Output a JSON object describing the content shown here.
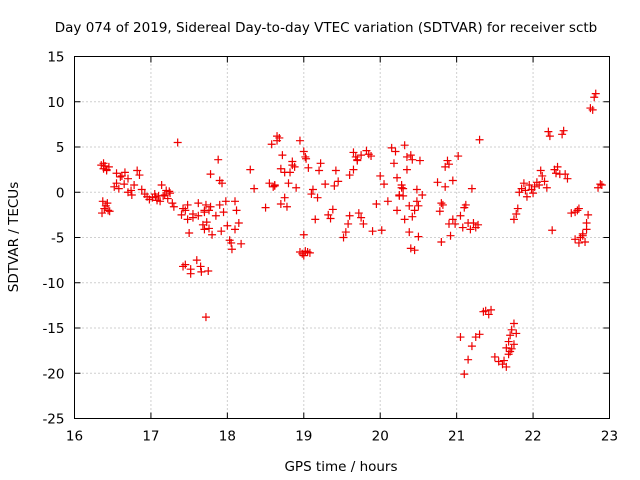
{
  "chart_data": {
    "type": "scatter",
    "title": "Day 074 of 2019, Sidereal Day-to-day VTEC variation (SDTVAR) for receiver sctb",
    "xlabel": "GPS time / hours",
    "ylabel": "SDTVAR / TECUs",
    "xlim": [
      16,
      23
    ],
    "ylim": [
      -25,
      15
    ],
    "xticks": [
      16,
      17,
      18,
      19,
      20,
      21,
      22,
      23
    ],
    "yticks": [
      -25,
      -20,
      -15,
      -10,
      -5,
      0,
      5,
      10,
      15
    ],
    "xtick_labels": [
      "16",
      "17",
      "18",
      "19",
      "20",
      "21",
      "22",
      "23"
    ],
    "ytick_labels": [
      "-25",
      "-20",
      "-15",
      "-10",
      "-5",
      "0",
      "5",
      "10",
      "15"
    ],
    "grid": true,
    "marker": "+",
    "color": "#ee0000",
    "series": [
      {
        "name": "SDTVAR",
        "x": [
          16.35,
          16.38,
          16.4,
          16.42,
          16.45,
          16.37,
          16.41,
          16.44,
          16.36,
          16.39,
          16.43,
          16.46,
          16.38,
          16.42,
          16.52,
          16.55,
          16.58,
          16.62,
          16.66,
          16.7,
          16.74,
          16.78,
          16.82,
          16.85,
          16.88,
          16.92,
          16.95,
          16.98,
          16.55,
          16.6,
          16.65,
          16.7,
          16.75,
          17.02,
          17.05,
          17.08,
          17.1,
          17.14,
          17.18,
          17.2,
          17.22,
          17.25,
          17.28,
          17.06,
          17.12,
          17.16,
          17.24,
          17.3,
          17.35,
          17.4,
          17.42,
          17.45,
          17.48,
          17.5,
          17.52,
          17.55,
          17.42,
          17.45,
          17.48,
          17.52,
          17.55,
          17.6,
          17.62,
          17.65,
          17.68,
          17.7,
          17.72,
          17.75,
          17.62,
          17.66,
          17.7,
          17.72,
          17.76,
          17.78,
          17.7,
          17.73,
          17.76,
          17.8,
          17.78,
          17.85,
          17.88,
          17.9,
          17.92,
          17.95,
          17.98,
          17.9,
          17.93,
          18.0,
          18.03,
          18.06,
          18.1,
          18.12,
          18.15,
          18.18,
          18.05,
          18.1,
          18.3,
          18.35,
          18.5,
          18.55,
          18.6,
          18.62,
          18.65,
          18.68,
          18.58,
          18.62,
          18.65,
          18.7,
          18.72,
          18.75,
          18.78,
          18.82,
          18.85,
          18.88,
          18.7,
          18.75,
          18.8,
          18.85,
          18.9,
          18.95,
          18.98,
          19.0,
          19.02,
          19.05,
          19.08,
          19.0,
          19.03,
          19.06,
          18.95,
          19.0,
          19.02,
          19.1,
          19.12,
          19.15,
          19.18,
          19.2,
          19.22,
          19.28,
          19.32,
          19.35,
          19.38,
          19.4,
          19.42,
          19.45,
          19.52,
          19.55,
          19.58,
          19.6,
          19.65,
          19.68,
          19.7,
          19.72,
          19.75,
          19.78,
          19.6,
          19.65,
          19.7,
          19.75,
          19.82,
          19.85,
          19.88,
          19.9,
          19.95,
          20.0,
          20.02,
          20.05,
          20.1,
          20.15,
          20.18,
          20.2,
          20.22,
          20.25,
          20.28,
          20.3,
          20.32,
          20.35,
          20.38,
          20.4,
          20.42,
          20.45,
          20.48,
          20.5,
          20.22,
          20.25,
          20.28,
          20.3,
          20.32,
          20.35,
          20.38,
          20.4,
          20.42,
          20.45,
          20.48,
          20.5,
          20.52,
          20.55,
          20.75,
          20.78,
          20.8,
          20.82,
          20.85,
          20.88,
          20.9,
          20.92,
          20.95,
          20.98,
          20.8,
          20.85,
          20.9,
          20.95,
          21.02,
          21.05,
          21.08,
          21.1,
          21.12,
          21.15,
          21.18,
          21.2,
          21.22,
          21.25,
          21.28,
          21.3,
          21.05,
          21.1,
          21.15,
          21.2,
          21.25,
          21.3,
          21.35,
          21.38,
          21.42,
          21.45,
          21.5,
          21.55,
          21.6,
          21.62,
          21.65,
          21.68,
          21.7,
          21.72,
          21.75,
          21.78,
          21.65,
          21.68,
          21.7,
          21.72,
          21.75,
          21.75,
          21.78,
          21.8,
          21.82,
          21.85,
          21.88,
          21.9,
          21.92,
          21.95,
          21.98,
          22.0,
          22.02,
          22.05,
          22.08,
          22.1,
          22.12,
          22.15,
          22.18,
          22.2,
          22.22,
          22.25,
          22.28,
          22.3,
          22.32,
          22.35,
          22.38,
          22.4,
          22.42,
          22.45,
          22.5,
          22.55,
          22.58,
          22.6,
          22.62,
          22.65,
          22.68,
          22.7,
          22.72,
          22.75,
          22.78,
          22.8,
          22.82,
          22.85,
          22.88,
          22.9,
          22.55,
          22.6,
          22.65,
          22.7
        ],
        "y": [
          3.0,
          2.6,
          2.9,
          2.5,
          2.8,
          -1.0,
          -1.5,
          -2.0,
          -2.3,
          -1.8,
          -1.2,
          -2.1,
          3.2,
          2.4,
          0.6,
          1.0,
          0.4,
          1.8,
          2.2,
          1.5,
          0.2,
          0.8,
          2.4,
          1.9,
          0.3,
          -0.2,
          -0.5,
          -0.8,
          2.1,
          1.7,
          0.9,
          0.0,
          -0.3,
          -0.6,
          -0.2,
          -0.9,
          -0.4,
          0.8,
          -0.3,
          0.2,
          -0.7,
          -0.1,
          -1.2,
          -0.5,
          -1.0,
          -0.4,
          0.1,
          -1.6,
          5.5,
          -2.5,
          -8.2,
          -2.0,
          -3.0,
          -4.5,
          -8.5,
          -2.8,
          -1.8,
          -8.0,
          -1.4,
          -9.0,
          -2.4,
          -7.5,
          -2.6,
          -8.2,
          -3.6,
          -2.0,
          -1.4,
          -8.7,
          -1.2,
          -8.8,
          -2.2,
          -13.8,
          -2.0,
          -1.6,
          -4.1,
          -3.3,
          -4.0,
          -4.7,
          2.0,
          -2.6,
          3.6,
          -1.4,
          -4.3,
          -2.2,
          -1.0,
          1.3,
          1.0,
          -3.7,
          -5.3,
          -6.3,
          -4.1,
          -2.0,
          -3.4,
          -5.7,
          -5.6,
          -1.0,
          2.5,
          0.4,
          -1.7,
          1.0,
          0.6,
          0.8,
          5.7,
          6.0,
          5.3,
          0.7,
          6.2,
          2.6,
          4.1,
          2.2,
          -1.6,
          2.2,
          3.0,
          2.8,
          -1.3,
          -0.6,
          1.0,
          3.4,
          0.5,
          -6.6,
          -6.8,
          -7.0,
          -6.5,
          -6.6,
          -6.7,
          4.5,
          3.7,
          2.7,
          5.7,
          -4.7,
          3.9,
          -0.2,
          0.3,
          -3.0,
          -0.6,
          2.4,
          3.2,
          0.9,
          -2.5,
          -2.9,
          -1.9,
          0.7,
          2.4,
          1.2,
          -5.0,
          -4.4,
          -3.5,
          -2.6,
          4.4,
          3.9,
          3.5,
          -2.3,
          -2.8,
          -3.5,
          1.9,
          2.5,
          3.6,
          4.1,
          4.6,
          4.2,
          4.0,
          -4.3,
          -1.3,
          1.8,
          -4.2,
          0.9,
          -1.0,
          4.9,
          3.2,
          4.5,
          1.6,
          -0.4,
          0.8,
          -0.4,
          5.2,
          3.9,
          -1.5,
          4.1,
          3.6,
          -2.0,
          0.3,
          -1.5,
          -2.0,
          -0.3,
          0.5,
          0.4,
          -3.0,
          2.5,
          -4.4,
          -6.2,
          -2.7,
          -6.4,
          -1.0,
          -4.9,
          3.5,
          -0.3,
          1.1,
          -2.1,
          -5.5,
          -1.4,
          0.6,
          3.5,
          -3.5,
          -4.8,
          -3.0,
          -3.5,
          -1.2,
          2.8,
          3.1,
          1.3,
          4.0,
          -2.6,
          -3.9,
          -1.7,
          -1.4,
          -3.4,
          -4.1,
          0.4,
          -3.4,
          -3.9,
          -3.6,
          5.8,
          -16.0,
          -20.1,
          -18.5,
          -17.0,
          -16.0,
          -15.7,
          -13.2,
          -13.1,
          -13.5,
          -13.0,
          -18.2,
          -18.7,
          -19.0,
          -18.6,
          -19.3,
          -17.9,
          -17.6,
          -17.3,
          -16.8,
          -15.6,
          -17.2,
          -16.5,
          -15.8,
          -15.2,
          -14.5,
          -3.0,
          -2.4,
          -1.8,
          0.0,
          0.4,
          1.0,
          0.2,
          -0.5,
          0.8,
          0.3,
          -0.1,
          0.6,
          1.1,
          0.8,
          2.4,
          1.8,
          1.2,
          0.5,
          6.7,
          6.2,
          -4.2,
          2.5,
          2.1,
          2.8,
          2.0,
          6.4,
          6.8,
          2.0,
          1.5,
          -2.3,
          -2.2,
          -2.0,
          -1.8,
          -5.0,
          -4.6,
          -5.5,
          -4.1,
          -2.5,
          9.3,
          9.1,
          10.5,
          10.9,
          0.5,
          0.9,
          0.8,
          -5.2,
          -5.6,
          -4.8,
          -3.4
        ]
      }
    ]
  }
}
